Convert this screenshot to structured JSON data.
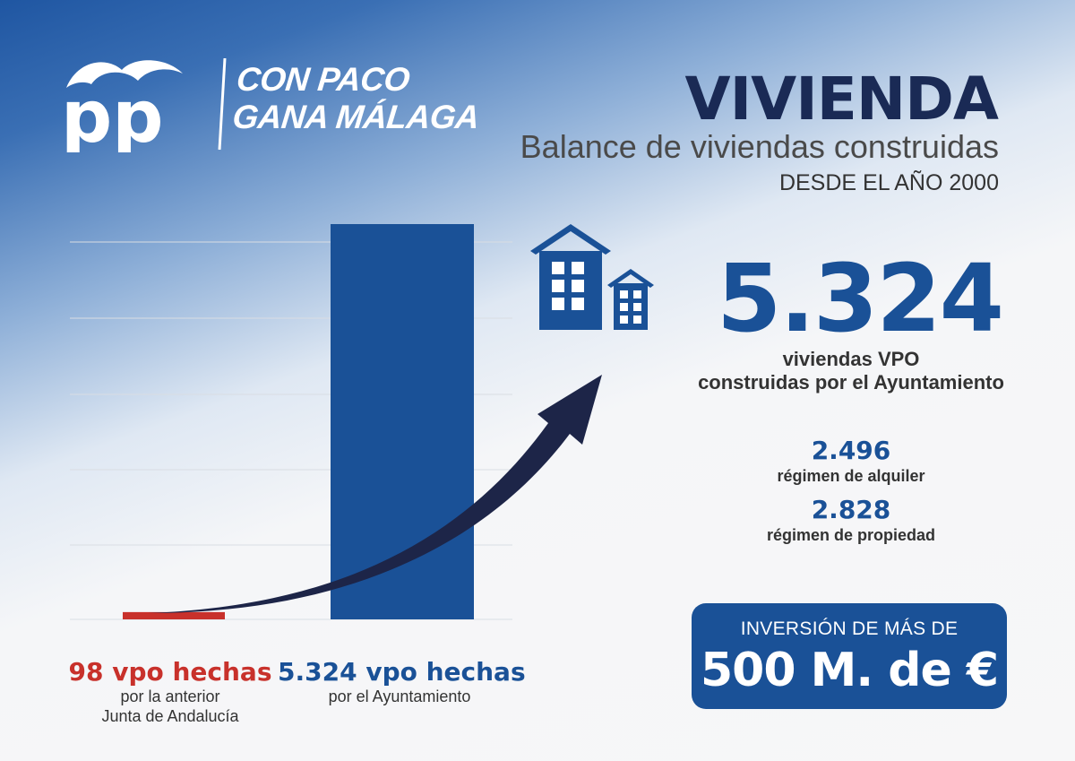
{
  "header": {
    "logo_text": "pp",
    "slogan_line1": "CON PACO",
    "slogan_line2": "GANA MÁLAGA",
    "title": "VIVIENDA",
    "subtitle": "Balance de viviendas construidas",
    "subtitle2": "DESDE EL AÑO 2000"
  },
  "chart_data": {
    "type": "bar",
    "categories": [
      "anterior Junta de Andalucía",
      "Ayuntamiento"
    ],
    "values": [
      98,
      5324
    ],
    "colors": [
      "#c8312b",
      "#1a5197"
    ],
    "ylim": [
      0,
      5324
    ],
    "grid": true,
    "title": "",
    "xlabel": "",
    "ylabel": ""
  },
  "bar_labels": [
    {
      "big": "98 vpo hechas",
      "small1": "por la anterior",
      "small2": "Junta de Andalucía"
    },
    {
      "big": "5.324 vpo hechas",
      "small1": "por el Ayuntamiento",
      "small2": ""
    }
  ],
  "stats": {
    "main_value": "5.324",
    "main_desc1": "viviendas VPO",
    "main_desc2": "construidas por el Ayuntamiento",
    "alquiler_value": "2.496",
    "alquiler_label": "régimen de alquiler",
    "propiedad_value": "2.828",
    "propiedad_label": "régimen de propiedad"
  },
  "investment": {
    "top": "INVERSIÓN DE MÁS DE",
    "amount": "500 M. de €"
  },
  "icons": [
    "houses-icon",
    "growth-arrow-icon"
  ]
}
